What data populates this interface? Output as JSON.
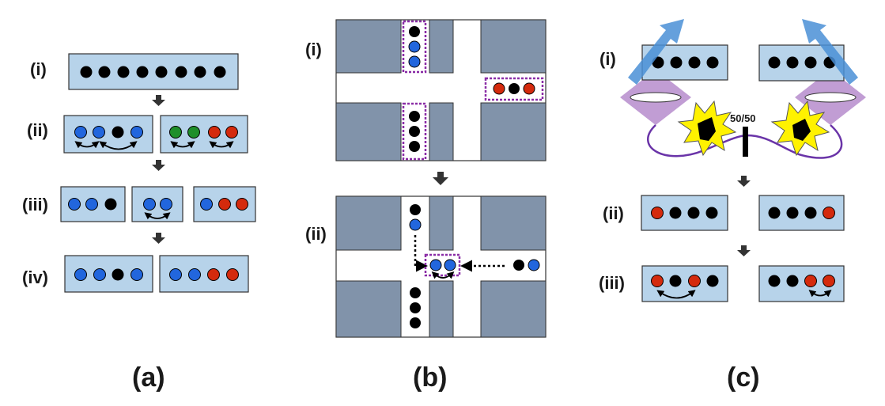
{
  "colors": {
    "trap": "#b7d3ea",
    "trap_border": "#333333",
    "building": "#8193aa",
    "black": "#000000",
    "blue": "#2266dd",
    "red": "#d42a0d",
    "green": "#1f8f2a",
    "dashed_box": "#8a2ca6",
    "laser": "#4a8fd6",
    "fluor": "#b68ccc",
    "fiber": "#6a34a8",
    "flash": "#fff200"
  },
  "panel_a": {
    "caption": "(a)",
    "steps": [
      {
        "label": "(i)"
      },
      {
        "label": "(ii)"
      },
      {
        "label": "(iii)"
      },
      {
        "label": "(iv)"
      }
    ]
  },
  "panel_b": {
    "caption": "(b)",
    "steps": [
      {
        "label": "(i)"
      },
      {
        "label": "(ii)"
      }
    ]
  },
  "panel_c": {
    "caption": "(c)",
    "beamsplitter_label": "50/50",
    "steps": [
      {
        "label": "(i)"
      },
      {
        "label": "(ii)"
      },
      {
        "label": "(iii)"
      }
    ]
  }
}
